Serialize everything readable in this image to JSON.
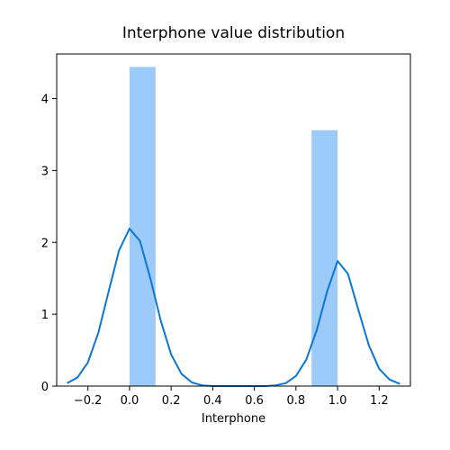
{
  "chart_data": {
    "type": "bar",
    "title": "Interphone value distribution",
    "xlabel": "Interphone",
    "ylabel": "",
    "xlim": [
      -0.35,
      1.35
    ],
    "ylim": [
      0,
      4.62
    ],
    "x_ticks": [
      -0.2,
      0.0,
      0.2,
      0.4,
      0.6,
      0.8,
      1.0,
      1.2
    ],
    "x_tick_labels": [
      "−0.2",
      "0.0",
      "0.2",
      "0.4",
      "0.6",
      "0.8",
      "1.0",
      "1.2"
    ],
    "y_ticks": [
      0,
      1,
      2,
      3,
      4
    ],
    "y_tick_labels": [
      "0",
      "1",
      "2",
      "3",
      "4"
    ],
    "bars": [
      {
        "x0": 0.0,
        "x1": 0.125,
        "value": 4.44
      },
      {
        "x0": 0.875,
        "x1": 1.0,
        "value": 3.56
      }
    ],
    "kde_line": {
      "x": [
        -0.3,
        -0.25,
        -0.2,
        -0.15,
        -0.1,
        -0.05,
        0.0,
        0.05,
        0.1,
        0.15,
        0.2,
        0.25,
        0.3,
        0.35,
        0.4,
        0.45,
        0.5,
        0.55,
        0.6,
        0.65,
        0.7,
        0.75,
        0.8,
        0.85,
        0.9,
        0.95,
        1.0,
        1.05,
        1.1,
        1.15,
        1.2,
        1.25,
        1.3
      ],
      "y": [
        0.04,
        0.12,
        0.33,
        0.74,
        1.32,
        1.89,
        2.19,
        2.02,
        1.5,
        0.91,
        0.44,
        0.17,
        0.05,
        0.01,
        0.0,
        0.0,
        0.0,
        0.0,
        0.0,
        0.0,
        0.01,
        0.04,
        0.14,
        0.37,
        0.78,
        1.32,
        1.74,
        1.56,
        1.06,
        0.57,
        0.24,
        0.09,
        0.03
      ]
    },
    "colors": {
      "bar": "#9ccbf9",
      "line": "#0a77d8",
      "axis": "#000000"
    },
    "grid": false
  }
}
